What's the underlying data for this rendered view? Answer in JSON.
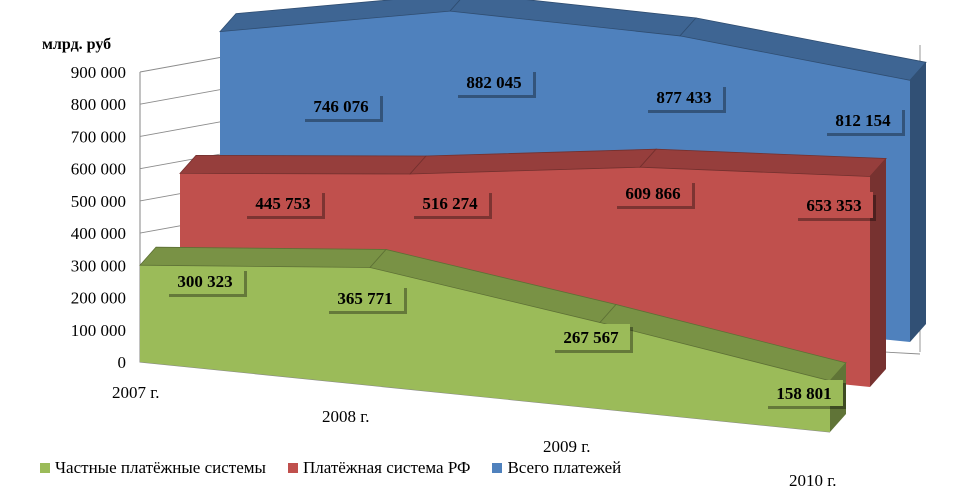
{
  "chart_data": {
    "type": "area",
    "view": "3d",
    "ylabel": "млрд. руб",
    "ylim": [
      0,
      900000
    ],
    "yticks": [
      "0",
      "100 000",
      "200 000",
      "300 000",
      "400 000",
      "500 000",
      "600 000",
      "700 000",
      "800 000",
      "900 000"
    ],
    "categories": [
      "2007 г.",
      "2008 г.",
      "2009 г.",
      "2010 г."
    ],
    "grid": true,
    "legend_position": "bottom",
    "series": [
      {
        "name": "Частные платёжные системы",
        "color": "#9BBB59",
        "values": [
          300323,
          365771,
          267567,
          158801
        ],
        "labels": [
          "300 323",
          "365 771",
          "267 567",
          "158 801"
        ]
      },
      {
        "name": "Платёжная система РФ",
        "color": "#C0504D",
        "values": [
          445753,
          516274,
          609866,
          653353
        ],
        "labels": [
          "445 753",
          "516 274",
          "609 866",
          "653 353"
        ]
      },
      {
        "name": "Всего платежей",
        "color": "#4F81BD",
        "values": [
          746076,
          882045,
          877433,
          812154
        ],
        "labels": [
          "746 076",
          "882 045",
          "877 433",
          "812 154"
        ]
      }
    ]
  }
}
